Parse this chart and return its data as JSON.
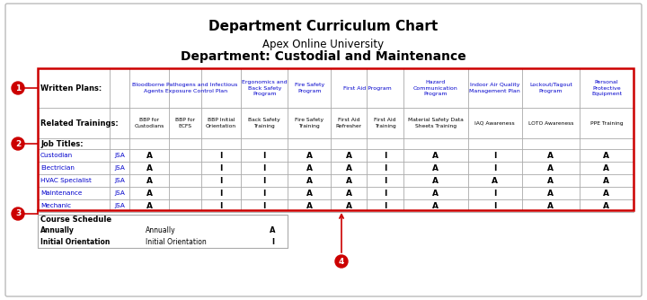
{
  "title": "Department Curriculum Chart",
  "subtitle": "Apex Online University",
  "dept_title": "Department: Custodial and Maintenance",
  "written_plans": [
    "Bloodborne Pathogens and Infectious\nAgents Exposure Control Plan",
    "Ergonomics and\nBack Safety\nProgram",
    "Fire Safety\nProgram",
    "First Aid Program",
    "Hazard\nCommunication\nProgram",
    "Indoor Air Quality\nManagement Plan",
    "Lockout/Tagout\nProgram",
    "Personal\nProtective\nEquipment"
  ],
  "related_trainings": [
    "BBP for\nCustodians",
    "BBP for\nECFS",
    "BBP Initial\nOrientation",
    "Back Safety\nTraining",
    "Fire Safety\nTraining",
    "First Aid\nRefresher",
    "First Aid\nTraining",
    "Material Safety Data\nSheets Training",
    "IAQ Awareness",
    "LOTO Awareness",
    "PPE Training"
  ],
  "job_titles": [
    [
      "Custodian",
      "JSA"
    ],
    [
      "Electrician",
      "JSA"
    ],
    [
      "HVAC Specialist",
      "JSA"
    ],
    [
      "Maintenance",
      "JSA"
    ],
    [
      "Mechanic",
      "JSA"
    ]
  ],
  "job_data": [
    [
      "A",
      "",
      "I",
      "I",
      "A",
      "A",
      "I",
      "A",
      "I",
      "A",
      "A"
    ],
    [
      "A",
      "",
      "I",
      "I",
      "A",
      "A",
      "I",
      "A",
      "I",
      "A",
      "A"
    ],
    [
      "A",
      "",
      "I",
      "I",
      "A",
      "A",
      "I",
      "A",
      "A",
      "A",
      "A"
    ],
    [
      "A",
      "",
      "I",
      "I",
      "A",
      "A",
      "I",
      "A",
      "I",
      "A",
      "A"
    ],
    [
      "A",
      "",
      "I",
      "I",
      "A",
      "A",
      "I",
      "A",
      "I",
      "A",
      "A"
    ]
  ],
  "course_schedule": [
    [
      "Annually",
      "Annually",
      "A"
    ],
    [
      "Initial Orientation",
      "Initial Orientation",
      "I"
    ]
  ],
  "link_color": "#0000CC",
  "border_color": "#CC0000",
  "grid_color": "#AAAAAA",
  "text_color": "#000000"
}
